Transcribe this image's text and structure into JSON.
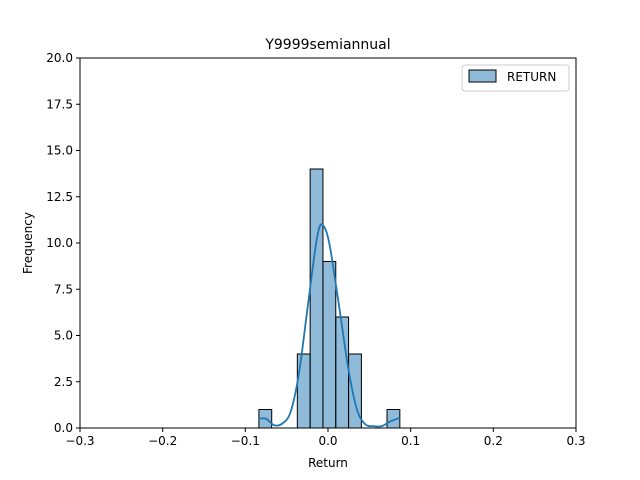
{
  "chart_data": {
    "type": "bar",
    "title": "Y9999semiannual",
    "xlabel": "Return",
    "ylabel": "Frequency",
    "xlim": [
      -0.3,
      0.3
    ],
    "ylim": [
      0,
      20
    ],
    "xticks": [
      "−0.3",
      "−0.2",
      "−0.1",
      "0.0",
      "0.1",
      "0.2",
      "0.3"
    ],
    "xtick_values": [
      -0.3,
      -0.2,
      -0.1,
      0.0,
      0.1,
      0.2,
      0.3
    ],
    "yticks": [
      "0.0",
      "2.5",
      "5.0",
      "7.5",
      "10.0",
      "12.5",
      "15.0",
      "17.5",
      "20.0"
    ],
    "ytick_values": [
      0,
      2.5,
      5,
      7.5,
      10,
      12.5,
      15,
      17.5,
      20
    ],
    "grid": false,
    "legend": {
      "position": "top-right",
      "entries": [
        "RETURN"
      ]
    },
    "bins": [
      {
        "x0": -0.0836,
        "x1": -0.0681,
        "count": 1
      },
      {
        "x0": -0.0681,
        "x1": -0.0526,
        "count": 0
      },
      {
        "x0": -0.0526,
        "x1": -0.0371,
        "count": 0
      },
      {
        "x0": -0.0371,
        "x1": -0.0216,
        "count": 4
      },
      {
        "x0": -0.0216,
        "x1": -0.0061,
        "count": 14
      },
      {
        "x0": -0.0061,
        "x1": 0.0094,
        "count": 9
      },
      {
        "x0": 0.0094,
        "x1": 0.0249,
        "count": 6
      },
      {
        "x0": 0.0249,
        "x1": 0.0404,
        "count": 4
      },
      {
        "x0": 0.0404,
        "x1": 0.0559,
        "count": 0
      },
      {
        "x0": 0.0559,
        "x1": 0.0714,
        "count": 0
      },
      {
        "x0": 0.0714,
        "x1": 0.0869,
        "count": 1
      }
    ],
    "kde": {
      "x": [
        -0.0836,
        -0.075,
        -0.065,
        -0.055,
        -0.045,
        -0.035,
        -0.025,
        -0.015,
        -0.01,
        -0.005,
        0.0,
        0.005,
        0.015,
        0.025,
        0.035,
        0.045,
        0.055,
        0.065,
        0.075,
        0.0869
      ],
      "y": [
        0.5,
        0.5,
        0.15,
        0.25,
        0.9,
        3.0,
        6.4,
        9.8,
        10.9,
        10.9,
        10.3,
        9.1,
        6.1,
        3.1,
        1.0,
        0.2,
        0.1,
        0.1,
        0.35,
        0.55
      ]
    },
    "colors": {
      "bar_fill": "#1f77b4",
      "bar_fill_opacity": "0.5",
      "bar_edge": "#000000",
      "kde_line": "#1f77b4"
    }
  }
}
